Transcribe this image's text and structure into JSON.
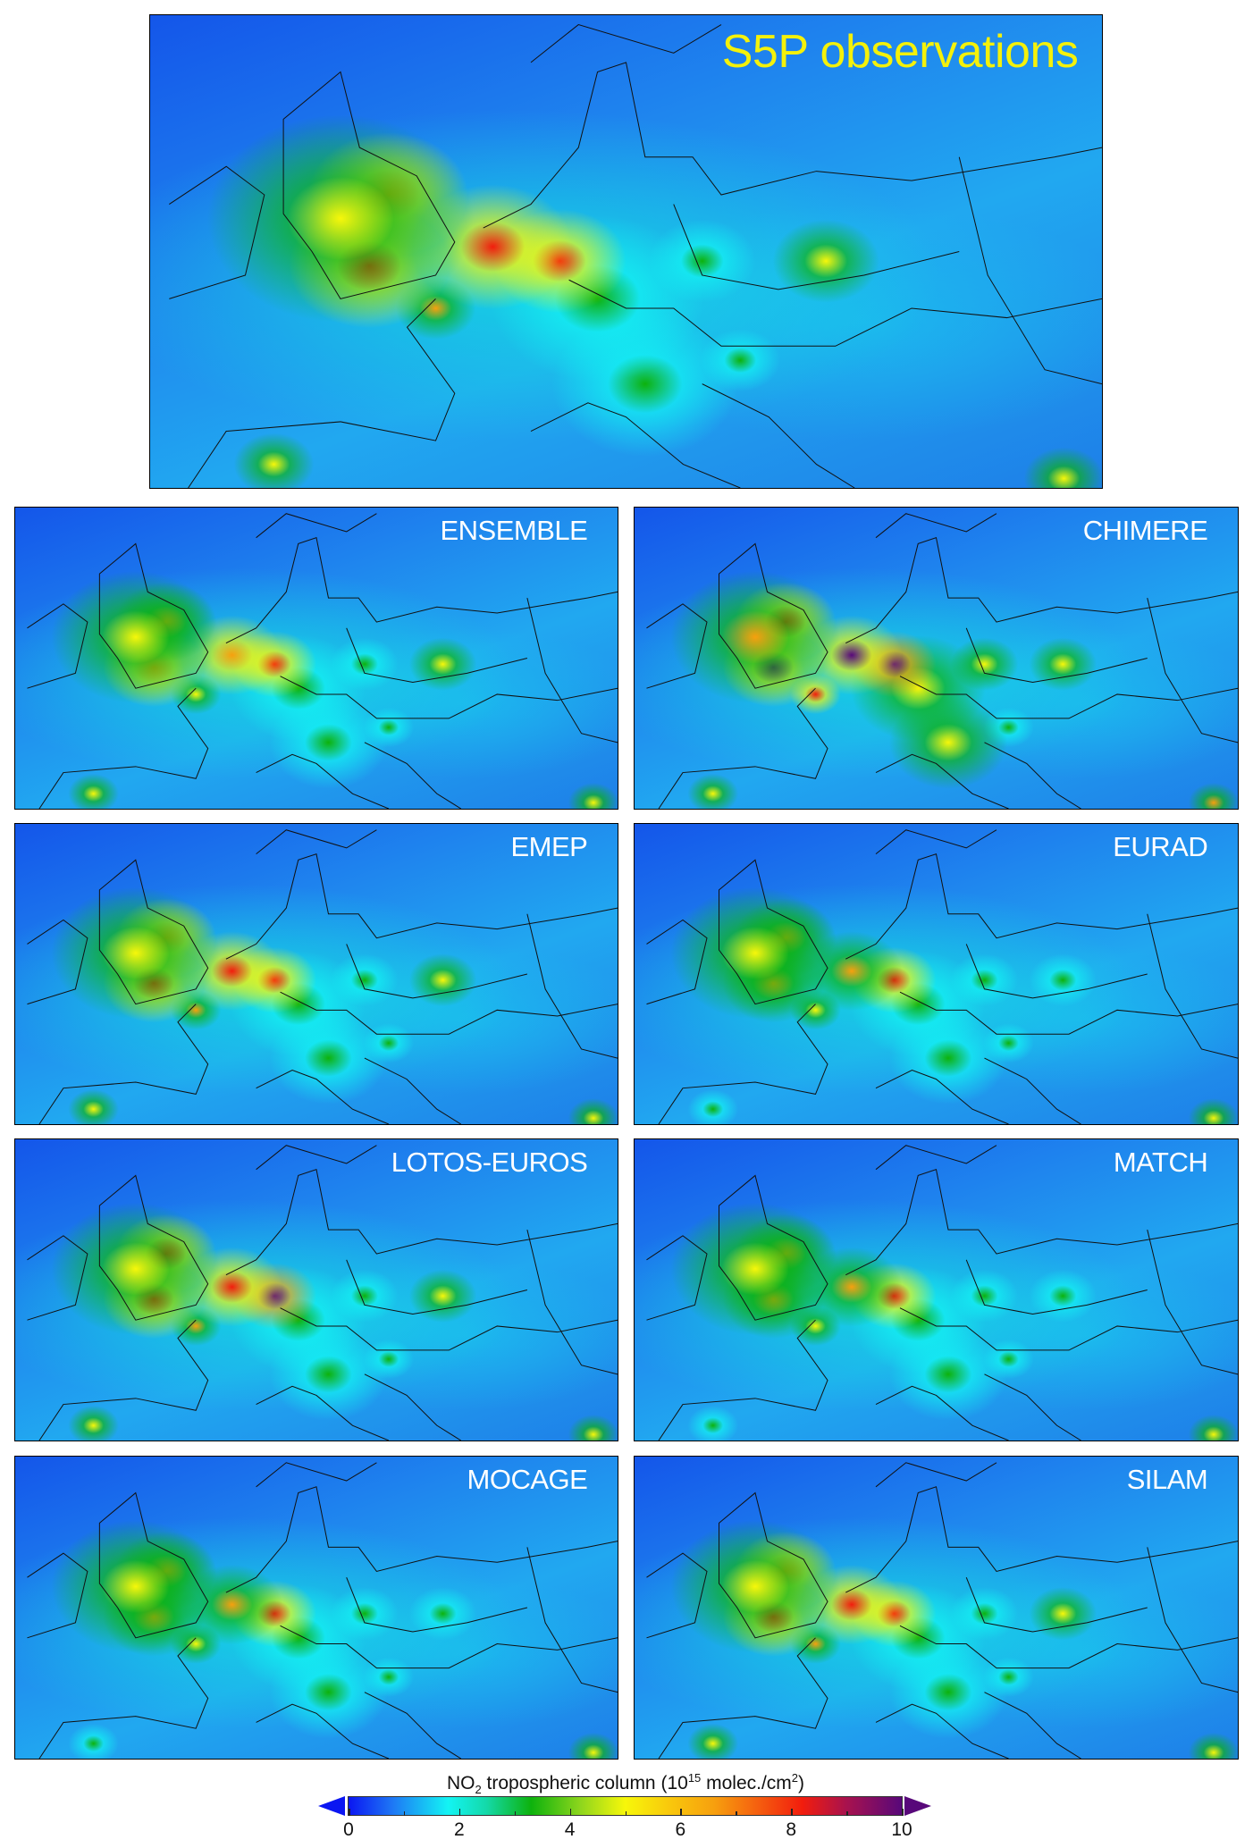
{
  "figure": {
    "panels": [
      {
        "id": "main",
        "label": "S5P observations"
      },
      {
        "id": "ensemble",
        "label": "ENSEMBLE"
      },
      {
        "id": "chimere",
        "label": "CHIMERE"
      },
      {
        "id": "emep",
        "label": "EMEP"
      },
      {
        "id": "eurad",
        "label": "EURAD"
      },
      {
        "id": "lotos",
        "label": "LOTOS-EUROS"
      },
      {
        "id": "match",
        "label": "MATCH"
      },
      {
        "id": "mocage",
        "label": "MOCAGE"
      },
      {
        "id": "silam",
        "label": "SILAM"
      }
    ],
    "colorbar": {
      "title_prefix": "NO",
      "title_sub": "2",
      "title_mid": " tropospheric column (10",
      "title_sup1": "15",
      "title_mid2": " molec./cm",
      "title_sup2": "2",
      "title_end": ")",
      "min": 0,
      "max": 10,
      "ticks": [
        "0",
        "2",
        "4",
        "6",
        "8",
        "10"
      ],
      "minor_ticks": [
        1,
        3,
        5,
        7,
        9
      ],
      "extend": "both",
      "colormap": [
        "#0b16f2",
        "#13f4f4",
        "#0db20d",
        "#f7f70a",
        "#f7a00e",
        "#f21d0d",
        "#58087a"
      ]
    },
    "label_colors": {
      "main": "#f4f10a",
      "models": "#ffffff"
    }
  }
}
